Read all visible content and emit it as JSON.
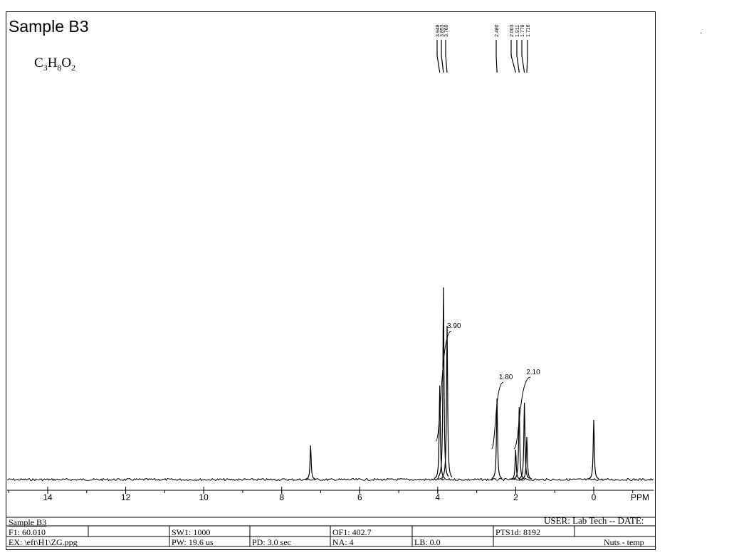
{
  "header": {
    "title": "Sample B3",
    "formula": {
      "C": "C",
      "c_n": "3",
      "H": "H",
      "h_n": "8",
      "O": "O",
      "o_n": "2"
    }
  },
  "chart_data": {
    "type": "line",
    "title": "Sample B3",
    "xlabel": "PPM",
    "ylabel": "",
    "x_reversed": true,
    "xlim": [
      15.0,
      -1.5
    ],
    "x_ticks": [
      14,
      12,
      10,
      8,
      6,
      4,
      2,
      0
    ],
    "x_tick_labels": [
      "14",
      "12",
      "10",
      "8",
      "6",
      "4",
      "2",
      "0"
    ],
    "grid": false,
    "series": [
      {
        "peaks": [
          {
            "ppm": 7.26,
            "height": 0.08
          },
          {
            "ppm": 3.948,
            "height": 0.22
          },
          {
            "ppm": 3.853,
            "height": 0.45
          },
          {
            "ppm": 3.76,
            "height": 0.36
          },
          {
            "ppm": 2.48,
            "height": 0.19
          },
          {
            "ppm": 2.003,
            "height": 0.07
          },
          {
            "ppm": 1.911,
            "height": 0.17
          },
          {
            "ppm": 1.778,
            "height": 0.18
          },
          {
            "ppm": 1.716,
            "height": 0.1
          },
          {
            "ppm": 0.0,
            "height": 0.14
          }
        ]
      }
    ],
    "peak_labels": [
      "3.948",
      "3.853",
      "3.760",
      "2.480",
      "2.003",
      "1.911",
      "1.778",
      "1.716"
    ],
    "integrals": [
      {
        "range": [
          4.05,
          3.65
        ],
        "label": "3.90",
        "y_start": 0.15,
        "y_end": 0.58
      },
      {
        "range": [
          2.62,
          2.32
        ],
        "label": "1.80",
        "y_start": 0.12,
        "y_end": 0.38
      },
      {
        "range": [
          2.05,
          1.62
        ],
        "label": "2.10",
        "y_start": 0.12,
        "y_end": 0.4
      }
    ]
  },
  "footer": {
    "sample": "Sample B3",
    "user": "USER: Lab Tech -- DATE:",
    "f1": "F1: 60.010",
    "sw1": "SW1: 1000",
    "of1": "OF1: 402.7",
    "pts": "PTS1d: 8192",
    "ex": "EX: \\eft\\H1\\ZG.ppg",
    "pw": "PW: 19.6 us",
    "pd": "PD: 3.0  sec",
    "na": "NA: 4",
    "lb": "LB: 0.0",
    "nuts": "Nuts - temp"
  }
}
